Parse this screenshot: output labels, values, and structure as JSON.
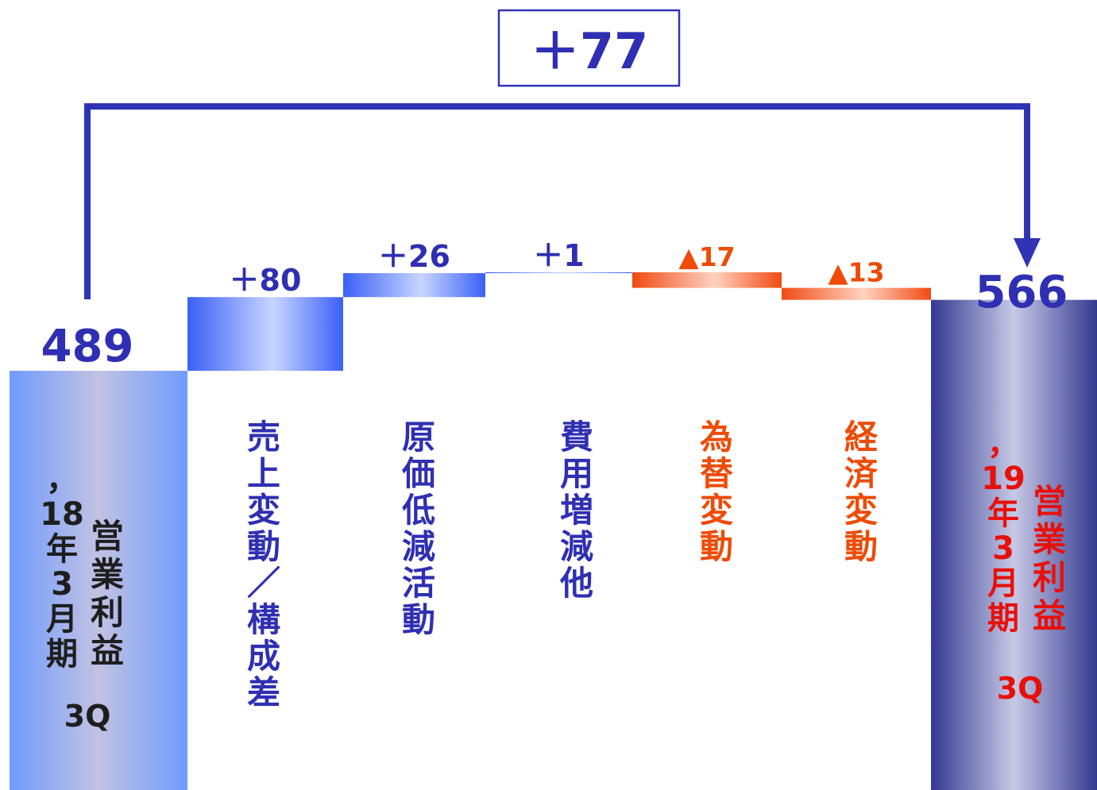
{
  "chart_data": {
    "type": "waterfall",
    "total_change_label": "＋77",
    "start": {
      "value": 489,
      "value_label": "489",
      "label_col_1": "，18年3月期",
      "label_col_2": "営業利益",
      "quarter": "3Q"
    },
    "steps": [
      {
        "category": "売上変動／構成差",
        "delta": 80,
        "value_label": "＋80"
      },
      {
        "category": "原価低減活動",
        "delta": 26,
        "value_label": "＋26"
      },
      {
        "category": "費用増減他",
        "delta": 1,
        "value_label": "＋1"
      },
      {
        "category": "為替変動",
        "delta": -17,
        "value_label": "▲17"
      },
      {
        "category": "経済変動",
        "delta": -13,
        "value_label": "▲13"
      }
    ],
    "end": {
      "value": 566,
      "value_label": "566",
      "label_col_1": "，19年3月期",
      "label_col_2": "営業利益",
      "quarter": "3Q"
    },
    "colors": {
      "increase": "#3f67f5",
      "decrease": "#f0541f",
      "start_bar": "#7ea3ff",
      "end_bar": "#383c98",
      "bracket": "#2f33b5",
      "positive_text": "#2f2fb3",
      "negative_text": "#ee4b06",
      "end_label_text": "#e8100a"
    }
  }
}
